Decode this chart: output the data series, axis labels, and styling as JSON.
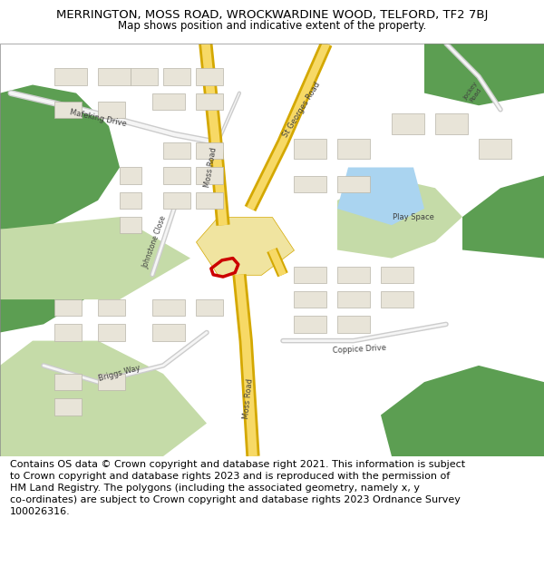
{
  "title": "MERRINGTON, MOSS ROAD, WROCKWARDINE WOOD, TELFORD, TF2 7BJ",
  "subtitle": "Map shows position and indicative extent of the property.",
  "footer": "Contains OS data © Crown copyright and database right 2021. This information is subject\nto Crown copyright and database rights 2023 and is reproduced with the permission of\nHM Land Registry. The polygons (including the associated geometry, namely x, y\nco-ordinates) are subject to Crown copyright and database rights 2023 Ordnance Survey\n100026316.",
  "title_fontsize": 9.5,
  "subtitle_fontsize": 8.5,
  "footer_fontsize": 8.0,
  "bg_color": "#ffffff",
  "map_bg": "#f0ede4",
  "road_yellow": "#f7d966",
  "road_border": "#d4a800",
  "green_dark": "#5c9e52",
  "green_light": "#c5dba8",
  "building_fill": "#e8e4d8",
  "building_edge": "#b8b4a8",
  "water_blue": "#aad4f0",
  "road_gray": "#cccccc",
  "road_white": "#f5f5f5",
  "plot_outline": "#cc0000",
  "text_dark": "#404040"
}
